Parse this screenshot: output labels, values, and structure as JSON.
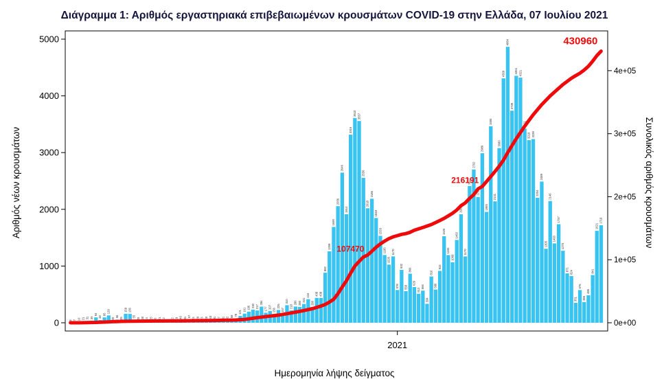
{
  "chart": {
    "title": "Διάγραμμα 1: Αριθμός εργαστηριακά επιβεβαιωμένων κρουσμάτων COVID-19 στην Ελλάδα, 07 Ιουλίου 2021",
    "xlabel": "Ημερομηνία λήψης δείγματος",
    "ylabel_left": "Αριθμός νέων κρουσμάτων",
    "ylabel_right": "Συνολικός αριθμός κρουσμάτων",
    "title_color": "#14143c",
    "background": "#ffffff"
  },
  "chart_data": {
    "type": "bar+line",
    "title": "Διάγραμμα 1: Αριθμός εργαστηριακά επιβεβαιωμένων κρουσμάτων COVID-19 στην Ελλάδα, 07 Ιουλίου 2021",
    "xlabel": "Ημερομηνία λήψης δείγματος",
    "ylabel_left": "Αριθμός νέων κρουσμάτων",
    "ylabel_right": "Συνολικός αριθμός κρουσμάτων",
    "x_range_note": "daily samples, Feb 2020 - 07 Jul 2021",
    "x_tick": {
      "label": "2021",
      "index": 77
    },
    "y_left": {
      "ticks": [
        0,
        1000,
        2000,
        3000,
        4000,
        5000
      ],
      "max": 5000
    },
    "y_right": {
      "ticks": [
        {
          "label": "0e+00",
          "value": 0
        },
        {
          "label": "1e+05",
          "value": 100000
        },
        {
          "label": "2e+05",
          "value": 200000
        },
        {
          "label": "3e+05",
          "value": 300000
        },
        {
          "label": "4e+05",
          "value": 400000
        }
      ],
      "max": 450000
    },
    "bar_series": {
      "name": "Αριθμός νέων κρουσμάτων",
      "color": "#38c3f0",
      "values": [
        3,
        7,
        10,
        21,
        31,
        35,
        94,
        48,
        95,
        129,
        20,
        56,
        25,
        159,
        156,
        55,
        20,
        30,
        14,
        25,
        10,
        21,
        12,
        7,
        12,
        19,
        40,
        31,
        57,
        24,
        29,
        23,
        28,
        43,
        31,
        27,
        31,
        32,
        58,
        78,
        121,
        161,
        196,
        230,
        217,
        284,
        177,
        207,
        156,
        225,
        157,
        310,
        218,
        286,
        280,
        331,
        416,
        280,
        438,
        438,
        882,
        1259,
        1690,
        2056,
        2646,
        1914,
        3316,
        3610,
        3557,
        2556,
        2018,
        2186,
        1848,
        1533,
        1195,
        1026,
        1170,
        578,
        932,
        558,
        866,
        629,
        512,
        566,
        334,
        816,
        586,
        915,
        1526,
        1194,
        1068,
        1460,
        1913,
        1170,
        2412,
        2702,
        2218,
        2989,
        1955,
        3465,
        2141,
        3080,
        4309,
        4864,
        3739,
        4354,
        4321,
        3421,
        3219,
        3239,
        2204,
        2489,
        1305,
        2146,
        1400,
        1737,
        1270,
        871,
        824,
        351,
        576,
        366,
        486,
        841,
        1621,
        1719
      ]
    },
    "line_series": {
      "name": "Συνολικός αριθμός κρουσμάτων",
      "color": "#ee0a0a",
      "values": [
        3,
        10,
        50,
        100,
        190,
        387,
        530,
        821,
        1061,
        1415,
        1755,
        2011,
        2170,
        2235,
        2401,
        2506,
        2591,
        2632,
        2691,
        2744,
        2810,
        2840,
        2882,
        2906,
        2937,
        2980,
        3049,
        3112,
        3227,
        3287,
        3343,
        3409,
        3459,
        3589,
        3672,
        3826,
        3983,
        4077,
        4227,
        4401,
        4855,
        5270,
        6177,
        7222,
        8138,
        8987,
        9800,
        10524,
        11386,
        12080,
        13240,
        14400,
        15600,
        16913,
        18123,
        19346,
        20947,
        22358,
        24450,
        26469,
        29057,
        32752,
        37196,
        46103,
        56698,
        66637,
        78825,
        90121,
        97288,
        104227,
        107470,
        113537,
        119864,
        125163,
        129557,
        133459,
        136336,
        138273,
        140245,
        141447,
        143453,
        146738,
        148926,
        151144,
        153562,
        155840,
        158957,
        162208,
        165583,
        169627,
        173824,
        178918,
        185742,
        190235,
        197279,
        203423,
        212496,
        216191,
        224000,
        232000,
        240000,
        248500,
        258000,
        270000,
        281000,
        292000,
        302000,
        312000,
        321000,
        330000,
        338000,
        346000,
        353000,
        360000,
        366000,
        372000,
        378000,
        383000,
        388000,
        392000,
        396000,
        401000,
        407000,
        415000,
        424000,
        430960
      ]
    },
    "annotations": [
      {
        "label": "107470",
        "index": 70
      },
      {
        "label": "216191",
        "index": 97
      },
      {
        "label": "430960",
        "index": 125
      }
    ]
  }
}
